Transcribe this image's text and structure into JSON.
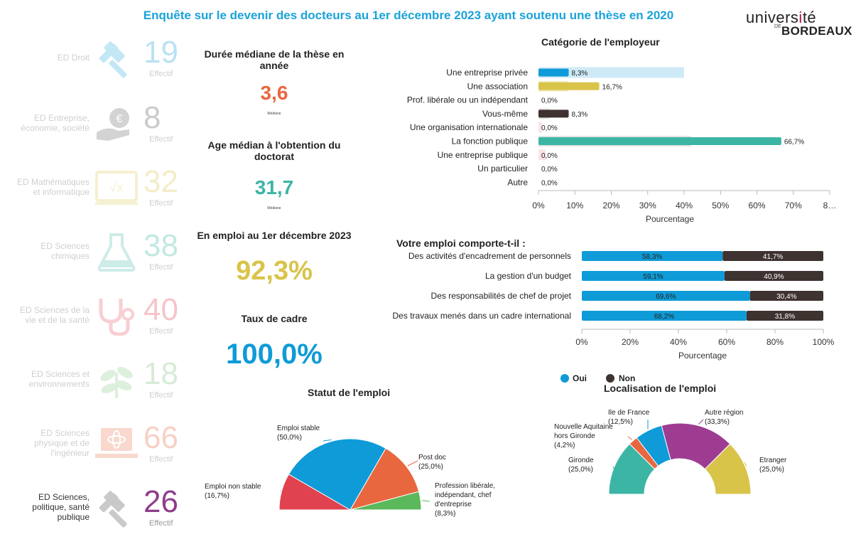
{
  "title": "Enquête sur le devenir des docteurs au 1er décembre 2023 ayant soutenu une thèse en 2020",
  "logo": {
    "line1": "université",
    "line2_small": "DE",
    "line2": "BORDEAUX"
  },
  "eds": [
    {
      "label": "ED Droit",
      "count": "19",
      "effectif": "Effectif",
      "icon": "gavel-icon",
      "color": "#1aa3d9",
      "active": false
    },
    {
      "label": "ED Entreprise, économie, société",
      "count": "8",
      "effectif": "Effectif",
      "icon": "euro-hand-icon",
      "color": "#555555",
      "active": false
    },
    {
      "label": "ED Mathématiques et informatique",
      "count": "32",
      "effectif": "Effectif",
      "icon": "math-board-icon",
      "color": "#d9c44a",
      "active": false
    },
    {
      "label": "ED Sciences chimiques",
      "count": "38",
      "effectif": "Effectif",
      "icon": "flask-icon",
      "color": "#3cb5a5",
      "active": false
    },
    {
      "label": "ED Sciences de la vie et de la santé",
      "count": "40",
      "effectif": "Effectif",
      "icon": "stethoscope-icon",
      "color": "#e0424f",
      "active": false
    },
    {
      "label": "ED Sciences et environnements",
      "count": "18",
      "effectif": "Effectif",
      "icon": "plant-icon",
      "color": "#7cc07a",
      "active": false
    },
    {
      "label": "ED Sciences physique et de l'ingénieur",
      "count": "66",
      "effectif": "Effectif",
      "icon": "atom-laptop-icon",
      "color": "#e8673f",
      "active": false
    },
    {
      "label": "ED Sciences, politique, santé publique",
      "count": "26",
      "effectif": "Effectif",
      "icon": "gavel-icon",
      "color": "#8e3d8c",
      "active": true
    }
  ],
  "kpis": {
    "duree_title": "Durée médiane de la thèse en année",
    "duree_value": "3,6",
    "duree_sub": "Médiane",
    "age_title": "Age médian à l'obtention du doctorat",
    "age_value": "31,7",
    "age_sub": "Médiane",
    "emploi_title": "En emploi au 1er décembre 2023",
    "emploi_value": "92,3%",
    "cadre_title": "Taux de cadre",
    "cadre_value": "100,0%"
  },
  "colors": {
    "blue": "#0f9bd7",
    "dark": "#3e3330",
    "yellow": "#d9c44a",
    "teal": "#3cb5a5",
    "orange": "#e8673f",
    "red": "#e0424f",
    "green": "#5bb85b",
    "purple": "#9d3c91",
    "pink": "#f3c4cc"
  },
  "chart_data": [
    {
      "type": "bar",
      "orientation": "horizontal",
      "title": "Catégorie de l'employeur",
      "xlabel": "Pourcentage",
      "ylabel": "",
      "categories": [
        "Une entreprise privée",
        "Une association",
        "Prof. libérale ou un indépendant",
        "Vous-même",
        "Une organisation internationale",
        "La fonction publique",
        "Une entreprise publique",
        "Un particulier",
        "Autre"
      ],
      "values": [
        8.3,
        16.7,
        0.0,
        8.3,
        0.0,
        66.7,
        0.0,
        0.0,
        0.0
      ],
      "value_labels": [
        "8,3%",
        "16,7%",
        "0,0%",
        "8,3%",
        "0,0%",
        "66,7%",
        "0,0%",
        "0,0%",
        "0,0%"
      ],
      "background_values": [
        40,
        8,
        0,
        3,
        1,
        42,
        2,
        0,
        0
      ],
      "bar_colors": [
        "#0f9bd7",
        "#d9c44a",
        "#3e3330",
        "#3e3330",
        "#f3c4cc",
        "#3cb5a5",
        "#f3c4cc",
        "#cccccc",
        "#cccccc"
      ],
      "background_colors": [
        "#cfeaf7",
        "#f2ecc6",
        "#e8e8e8",
        "#e6e3e2",
        "#fbe3e7",
        "#e2e2e2",
        "#fbe3e7",
        "#eeeeee",
        "#eeeeee"
      ],
      "xticks": [
        "0%",
        "10%",
        "20%",
        "30%",
        "40%",
        "50%",
        "60%",
        "70%",
        "8…"
      ],
      "xlim": [
        0,
        80
      ],
      "grid": false
    },
    {
      "type": "bar",
      "orientation": "horizontal",
      "stacked": true,
      "title": "Votre emploi comporte-t-il :",
      "xlabel": "Pourcentage",
      "categories": [
        "Des activités d'encadrement de personnels",
        "La gestion d'un budget",
        "Des responsabilités de chef de projet",
        "Des travaux menés dans un cadre international"
      ],
      "series": [
        {
          "name": "Oui",
          "values": [
            58.3,
            59.1,
            69.6,
            68.2
          ],
          "labels": [
            "58,3%",
            "59,1%",
            "69,6%",
            "68,2%"
          ],
          "color": "#0f9bd7"
        },
        {
          "name": "Non",
          "values": [
            41.7,
            40.9,
            30.4,
            31.8
          ],
          "labels": [
            "41,7%",
            "40,9%",
            "30,4%",
            "31,8%"
          ],
          "color": "#3e3330"
        }
      ],
      "xticks": [
        "0%",
        "20%",
        "40%",
        "60%",
        "80%",
        "100%"
      ],
      "xlim": [
        0,
        100
      ],
      "legend": "bottom"
    },
    {
      "type": "pie",
      "variant": "half-donut",
      "title": "Statut de l'emploi",
      "slices": [
        {
          "label": "Emploi non stable",
          "value": 16.7,
          "pct": "(16,7%)",
          "color": "#e0424f"
        },
        {
          "label": "Emploi stable",
          "value": 50.0,
          "pct": "(50,0%)",
          "color": "#0f9bd7"
        },
        {
          "label": "Post doc",
          "value": 25.0,
          "pct": "(25,0%)",
          "color": "#e8673f"
        },
        {
          "label": "Profession libérale, indépendant, chef d'entreprise",
          "value": 8.3,
          "pct": "(8,3%)",
          "color": "#5bb85b"
        }
      ]
    },
    {
      "type": "pie",
      "variant": "half-donut",
      "title": "Localisation de l'emploi",
      "slices": [
        {
          "label": "Gironde",
          "value": 25.0,
          "pct": "(25,0%)",
          "color": "#3cb5a5"
        },
        {
          "label": "Nouvelle Aquitaine hors Gironde",
          "value": 4.2,
          "pct": "(4,2%)",
          "color": "#e8673f"
        },
        {
          "label": "Ile de France",
          "value": 12.5,
          "pct": "(12,5%)",
          "color": "#0f9bd7"
        },
        {
          "label": "Autre région",
          "value": 33.3,
          "pct": "(33,3%)",
          "color": "#9d3c91"
        },
        {
          "label": "Etranger",
          "value": 25.0,
          "pct": "(25,0%)",
          "color": "#d9c44a"
        }
      ]
    }
  ]
}
